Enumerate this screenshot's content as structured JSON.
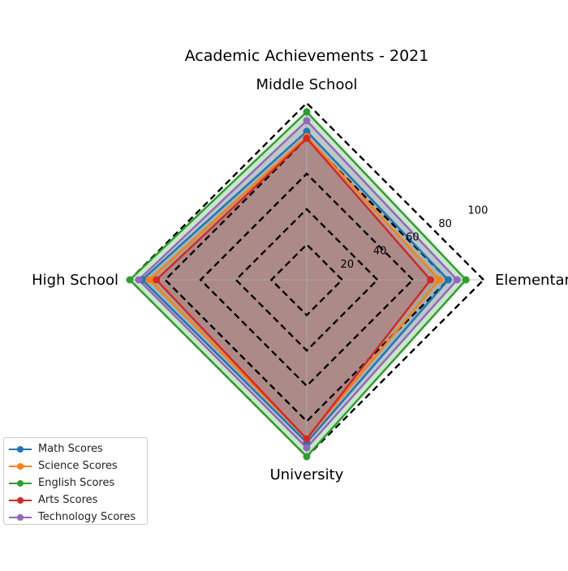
{
  "chart_data": {
    "type": "radar",
    "title": "Academic Achievements - 2021",
    "categories": [
      "Elementary",
      "Middle School",
      "High School",
      "University"
    ],
    "rlim": [
      0,
      100
    ],
    "rticks": [
      20,
      40,
      60,
      80,
      100
    ],
    "rtick_labels": [
      "20",
      "40",
      "60",
      "80",
      "100"
    ],
    "grid": true,
    "grid_style": "dashed-black",
    "legend_position": "lower-left",
    "series": [
      {
        "name": "Math Scores",
        "values": [
          80,
          84,
          93,
          92
        ],
        "color": "#1f77b4"
      },
      {
        "name": "Science Scores",
        "values": [
          75,
          81,
          89,
          90
        ],
        "color": "#ff7f0e"
      },
      {
        "name": "English Scores",
        "values": [
          90,
          95,
          100,
          100
        ],
        "color": "#2ca02c"
      },
      {
        "name": "Arts Scores",
        "values": [
          70,
          80,
          85,
          90
        ],
        "color": "#d62728"
      },
      {
        "name": "Technology Scores",
        "values": [
          85,
          90,
          95,
          95
        ],
        "color": "#9467bd"
      }
    ]
  }
}
